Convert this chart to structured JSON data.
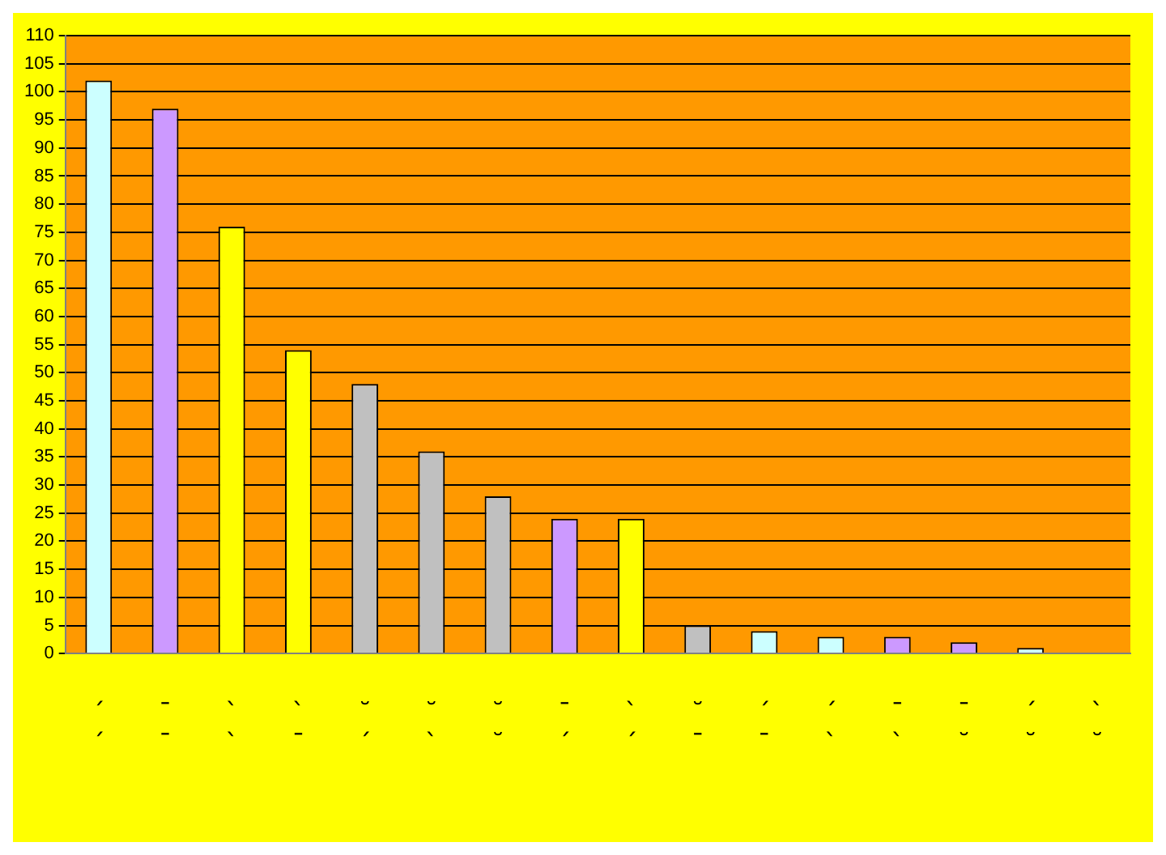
{
  "chart_data": {
    "type": "bar",
    "categories": [
      "ˊ\nˊ",
      "ˉ\nˉ",
      "ˋ\nˋ",
      "ˋ\nˉ",
      "˘\nˊ",
      "˘\nˋ",
      "˘\n˘",
      "ˉ\nˊ",
      "ˋ\nˊ",
      "˘\nˉ",
      "ˊ\nˉ",
      "ˊ\nˋ",
      "ˉ\nˋ",
      "ˉ\n˘",
      "ˊ\n˘",
      "ˋ\n˘"
    ],
    "values": [
      102,
      97,
      76,
      54,
      48,
      36,
      28,
      24,
      24,
      5,
      4,
      3,
      3,
      2,
      1,
      null
    ],
    "colors": [
      "#ccffff",
      "#cc99ff",
      "#ffff00",
      "#ffff00",
      "#c0c0c0",
      "#c0c0c0",
      "#c0c0c0",
      "#cc99ff",
      "#ffff00",
      "#c0c0c0",
      "#ccffff",
      "#ccffff",
      "#cc99ff",
      "#cc99ff",
      "#ccffff",
      "#ccffff"
    ],
    "ylim": [
      0,
      110
    ],
    "yticks": [
      0,
      5,
      10,
      15,
      20,
      25,
      30,
      35,
      40,
      45,
      50,
      55,
      60,
      65,
      70,
      75,
      80,
      85,
      90,
      95,
      100,
      105,
      110
    ],
    "grid": "y",
    "legend": false
  }
}
